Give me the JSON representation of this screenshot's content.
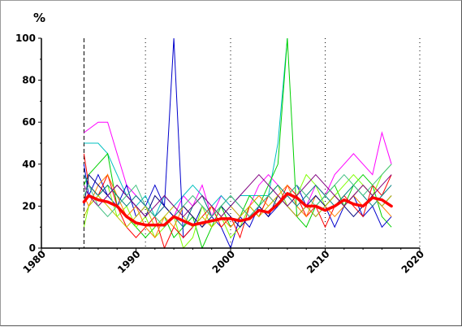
{
  "chart_data": {
    "type": "line",
    "title": "",
    "xlabel": "",
    "ylabel": "",
    "y_unit": "%",
    "xlim": [
      1980,
      2020
    ],
    "ylim": [
      0,
      100
    ],
    "x_ticks": [
      "1980",
      "1990",
      "2000",
      "2010",
      "2020"
    ],
    "y_ticks": [
      "0",
      "20",
      "40",
      "60",
      "80",
      "100"
    ],
    "x_tick_values": [
      1980,
      1990,
      2000,
      2010,
      2020
    ],
    "y_tick_values": [
      0,
      20,
      40,
      60,
      80,
      100
    ],
    "vertical_reference_lines": [
      {
        "x": 1984.5,
        "style": "dashed"
      },
      {
        "x": 1991,
        "style": "dotted"
      },
      {
        "x": 2000,
        "style": "dotted"
      },
      {
        "x": 2010,
        "style": "dotted"
      },
      {
        "x": 2020,
        "style": "dotted"
      }
    ],
    "grid": false,
    "legend": "none",
    "mean_series": {
      "color": "#ff0000",
      "x": [
        1984.5,
        1985,
        1986,
        1987,
        1988,
        1989,
        1990,
        1991,
        1992,
        1993,
        1994,
        1995,
        1996,
        1997,
        1998,
        1999,
        2000,
        2001,
        2002,
        2003,
        2004,
        2005,
        2006,
        2007,
        2008,
        2009,
        2010,
        2011,
        2012,
        2013,
        2014,
        2015,
        2016,
        2017
      ],
      "values": [
        22,
        25,
        23,
        22,
        20,
        15,
        12,
        11,
        11,
        11,
        15,
        13,
        11,
        12,
        13,
        14,
        14,
        13,
        14,
        18,
        17,
        21,
        26,
        24,
        20,
        20,
        18,
        20,
        23,
        21,
        20,
        24,
        23,
        20
      ]
    },
    "series": [
      {
        "color": "#ff00ff",
        "x": [
          1984.5,
          1986,
          1987,
          1988,
          1989,
          1990,
          1991,
          1992,
          1993,
          1994,
          1995,
          1996,
          1997,
          1998,
          1999,
          2000,
          2001,
          2002,
          2003,
          2004,
          2005,
          2006,
          2007,
          2008,
          2009,
          2010,
          2011,
          2012,
          2013,
          2014,
          2015,
          2016,
          2017
        ],
        "values": [
          55,
          60,
          60,
          45,
          30,
          25,
          20,
          15,
          20,
          15,
          25,
          20,
          30,
          15,
          25,
          20,
          15,
          20,
          30,
          35,
          30,
          20,
          15,
          20,
          30,
          25,
          35,
          40,
          45,
          40,
          35,
          55,
          40
        ]
      },
      {
        "color": "#00c0c0",
        "x": [
          1984.5,
          1985,
          1986,
          1987,
          1988,
          1989,
          1990,
          1991,
          1992,
          1993,
          1994,
          1995,
          1996,
          1997,
          1998,
          1999,
          2000,
          2001,
          2002,
          2003,
          2004,
          2005,
          2006
        ],
        "values": [
          50,
          50,
          50,
          45,
          35,
          25,
          20,
          25,
          15,
          25,
          20,
          25,
          30,
          25,
          20,
          25,
          20,
          25,
          25,
          25,
          25,
          50,
          100
        ]
      },
      {
        "color": "#00d000",
        "x": [
          1984.5,
          1985,
          1986,
          1987,
          1988,
          1989,
          1990,
          1991,
          1992,
          1993,
          1994,
          1995,
          1996,
          1997,
          1998,
          1999,
          2000,
          2001,
          2002,
          2003,
          2004,
          2005,
          2006,
          2007,
          2008,
          2009,
          2010,
          2011,
          2012,
          2013,
          2014,
          2015,
          2016,
          2017
        ],
        "values": [
          30,
          35,
          40,
          45,
          20,
          15,
          10,
          5,
          10,
          15,
          5,
          10,
          15,
          0,
          10,
          20,
          10,
          15,
          25,
          20,
          30,
          40,
          100,
          15,
          10,
          20,
          25,
          30,
          20,
          30,
          35,
          30,
          15,
          10
        ]
      },
      {
        "color": "#0000cc",
        "x": [
          1984.5,
          1985,
          1986,
          1987,
          1988,
          1989,
          1990,
          1991,
          1992,
          1993,
          1994,
          1995,
          1996,
          1997,
          1998,
          1999,
          2000,
          2001,
          2002,
          2003,
          2004,
          2005,
          2006,
          2007,
          2008,
          2009,
          2010,
          2011,
          2012,
          2013,
          2014,
          2015,
          2016,
          2017
        ],
        "values": [
          40,
          25,
          35,
          25,
          20,
          30,
          15,
          20,
          30,
          20,
          100,
          5,
          10,
          20,
          15,
          10,
          0,
          15,
          10,
          20,
          15,
          20,
          25,
          30,
          20,
          15,
          20,
          10,
          20,
          25,
          15,
          20,
          10,
          15
        ]
      },
      {
        "color": "#80ff00",
        "x": [
          1984.5,
          1985,
          1986,
          1987,
          1988,
          1989,
          1990,
          1991,
          1992,
          1993,
          1994,
          1995,
          1996,
          1997,
          1998,
          1999,
          2000,
          2001,
          2002,
          2003,
          2004,
          2005,
          2006,
          2007,
          2008,
          2009,
          2010,
          2011,
          2012,
          2013,
          2014,
          2015,
          2016,
          2017
        ],
        "values": [
          10,
          20,
          25,
          30,
          15,
          20,
          10,
          15,
          5,
          10,
          15,
          0,
          5,
          20,
          10,
          15,
          5,
          10,
          20,
          15,
          25,
          30,
          20,
          25,
          35,
          30,
          20,
          25,
          30,
          35,
          30,
          25,
          35,
          40
        ]
      },
      {
        "color": "#ff0000",
        "x": [
          1984.5,
          1985,
          1986,
          1987,
          1988,
          1989,
          1990,
          1991,
          1992,
          1993,
          1994,
          1995,
          1996,
          1997,
          1998,
          1999,
          2000,
          2001,
          2002,
          2003,
          2004,
          2005,
          2006,
          2007,
          2008,
          2009,
          2010,
          2011,
          2012,
          2013,
          2014,
          2015,
          2016,
          2017
        ],
        "values": [
          45,
          30,
          25,
          35,
          20,
          10,
          5,
          10,
          15,
          0,
          10,
          5,
          10,
          15,
          20,
          10,
          15,
          5,
          20,
          15,
          25,
          20,
          30,
          25,
          15,
          20,
          10,
          20,
          25,
          20,
          15,
          30,
          25,
          35
        ]
      },
      {
        "color": "#ff8000",
        "x": [
          1984.5,
          1985,
          1986,
          1987,
          1988,
          1989,
          1990,
          1991,
          1992,
          1993,
          1994,
          1995,
          1996,
          1997,
          1998,
          1999,
          2000,
          2001,
          2002,
          2003,
          2004,
          2005,
          2006,
          2007,
          2008,
          2009,
          2010,
          2011,
          2012,
          2013,
          2014,
          2015,
          2016,
          2017
        ],
        "values": [
          25,
          20,
          30,
          35,
          25,
          15,
          20,
          10,
          5,
          15,
          10,
          20,
          15,
          10,
          20,
          15,
          10,
          15,
          20,
          25,
          20,
          25,
          30,
          20,
          15,
          25,
          20,
          15,
          20,
          25,
          20,
          25,
          20,
          15
        ]
      },
      {
        "color": "#008080",
        "x": [
          1984.5,
          1985,
          1986,
          1987,
          1988,
          1989,
          1990,
          1991,
          1992,
          1993,
          1994,
          1995,
          1996,
          1997,
          1998,
          1999,
          2000,
          2001,
          2002,
          2003,
          2004,
          2005,
          2006,
          2007,
          2008,
          2009,
          2010,
          2011,
          2012,
          2013,
          2014,
          2015,
          2016,
          2017
        ],
        "values": [
          35,
          30,
          25,
          30,
          25,
          20,
          25,
          20,
          15,
          20,
          15,
          10,
          20,
          25,
          15,
          20,
          25,
          20,
          15,
          20,
          25,
          30,
          25,
          20,
          25,
          30,
          25,
          20,
          25,
          30,
          25,
          20,
          25,
          30
        ]
      },
      {
        "color": "#000080",
        "x": [
          1984.5,
          1985,
          1986,
          1987,
          1988,
          1989,
          1990,
          1991,
          1992,
          1993,
          1994,
          1995,
          1996,
          1997,
          1998,
          1999,
          2000,
          2001,
          2002,
          2003,
          2004,
          2005,
          2006,
          2007,
          2008,
          2009,
          2010,
          2011,
          2012,
          2013,
          2014,
          2015,
          2016,
          2017
        ],
        "values": [
          20,
          35,
          30,
          25,
          30,
          25,
          20,
          15,
          25,
          20,
          15,
          20,
          15,
          10,
          15,
          20,
          15,
          10,
          15,
          20,
          15,
          25,
          20,
          15,
          20,
          25,
          20,
          25,
          20,
          15,
          20,
          25,
          20,
          25
        ]
      },
      {
        "color": "#c0c000",
        "x": [
          1984.5,
          1985,
          1986,
          1987,
          1988,
          1989,
          1990,
          1991,
          1992,
          1993,
          1994,
          1995,
          1996,
          1997,
          1998,
          1999,
          2000,
          2001,
          2002,
          2003,
          2004,
          2005,
          2006,
          2007,
          2008,
          2009,
          2010,
          2011,
          2012,
          2013,
          2014,
          2015,
          2016,
          2017
        ],
        "values": [
          15,
          20,
          25,
          20,
          15,
          10,
          15,
          20,
          10,
          15,
          20,
          15,
          10,
          15,
          10,
          15,
          20,
          15,
          20,
          15,
          20,
          25,
          20,
          15,
          20,
          15,
          20,
          25,
          20,
          25,
          30,
          25,
          20,
          25
        ]
      },
      {
        "color": "#800080",
        "x": [
          1984.5,
          1985,
          1986,
          1987,
          1988,
          1989,
          1990,
          1991,
          1992,
          1993,
          1994,
          1995,
          1996,
          1997,
          1998,
          1999,
          2000,
          2001,
          2002,
          2003,
          2004,
          2005,
          2006,
          2007,
          2008,
          2009,
          2010,
          2011,
          2012,
          2013,
          2014,
          2015,
          2016,
          2017
        ],
        "values": [
          30,
          25,
          20,
          25,
          30,
          25,
          20,
          15,
          20,
          25,
          20,
          15,
          20,
          25,
          20,
          15,
          20,
          25,
          30,
          35,
          30,
          25,
          20,
          25,
          30,
          35,
          30,
          25,
          20,
          25,
          30,
          25,
          30,
          35
        ]
      },
      {
        "color": "#40c080",
        "x": [
          1984.5,
          1985,
          1986,
          1987,
          1988,
          1989,
          1990,
          1991,
          1992,
          1993,
          1994,
          1995,
          1996,
          1997,
          1998,
          1999,
          2000,
          2001,
          2002,
          2003,
          2004,
          2005,
          2006,
          2007,
          2008,
          2009,
          2010,
          2011,
          2012,
          2013,
          2014,
          2015,
          2016,
          2017
        ],
        "values": [
          25,
          30,
          20,
          15,
          20,
          25,
          30,
          20,
          15,
          10,
          15,
          20,
          25,
          20,
          15,
          20,
          25,
          20,
          15,
          20,
          25,
          20,
          25,
          30,
          25,
          20,
          25,
          30,
          35,
          30,
          25,
          30,
          35,
          40
        ]
      }
    ]
  }
}
